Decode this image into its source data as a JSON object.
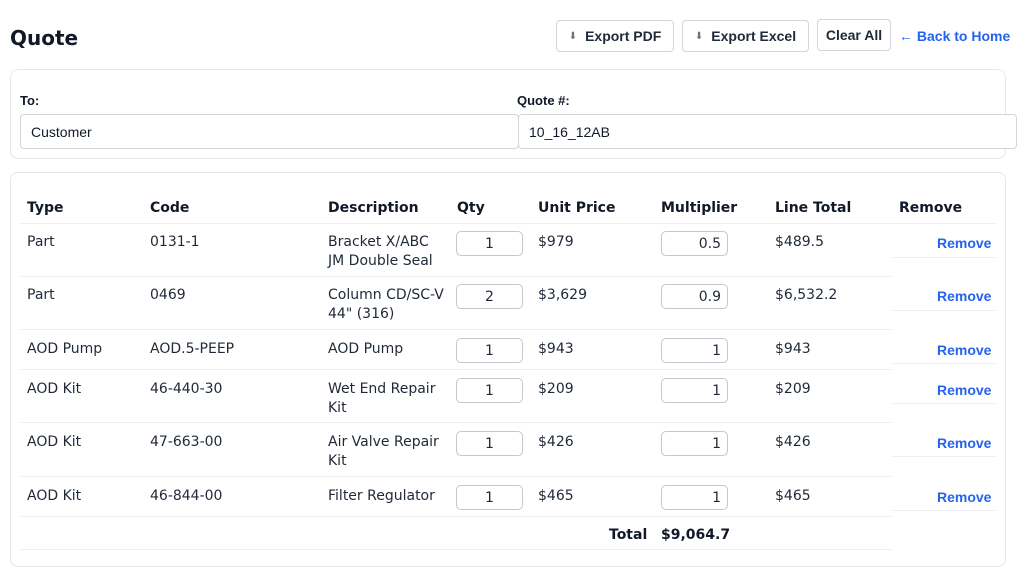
{
  "header": {
    "title": "Quote",
    "export_pdf": "Export PDF",
    "export_excel": "Export Excel",
    "clear_all": "Clear All",
    "back_home": "← Back to Home"
  },
  "quote_info": {
    "to_label": "To:",
    "to_value": "Customer",
    "quote_label": "Quote #:",
    "quote_value": "10_16_12AB"
  },
  "table": {
    "columns": [
      "Type",
      "Code",
      "Description",
      "Qty",
      "Unit Price",
      "Multiplier",
      "Line Total",
      "Remove"
    ],
    "rows": [
      {
        "type": "Part",
        "code": "0131-1",
        "description": "Bracket X/ABC JM Double Seal",
        "qty": "1",
        "unit_price": "$979",
        "multiplier": "0.5",
        "line_total": "$489.5",
        "remove": "Remove"
      },
      {
        "type": "Part",
        "code": "0469",
        "description": "Column CD/SC-V 44\" (316)",
        "qty": "2",
        "unit_price": "$3,629",
        "multiplier": "0.9",
        "line_total": "$6,532.2",
        "remove": "Remove"
      },
      {
        "type": "AOD Pump",
        "code": "AOD.5-PEEP",
        "description": "AOD Pump",
        "qty": "1",
        "unit_price": "$943",
        "multiplier": "1",
        "line_total": "$943",
        "remove": "Remove"
      },
      {
        "type": "AOD Kit",
        "code": "46-440-30",
        "description": "Wet End Repair Kit",
        "qty": "1",
        "unit_price": "$209",
        "multiplier": "1",
        "line_total": "$209",
        "remove": "Remove"
      },
      {
        "type": "AOD Kit",
        "code": "47-663-00",
        "description": "Air Valve Repair Kit",
        "qty": "1",
        "unit_price": "$426",
        "multiplier": "1",
        "line_total": "$426",
        "remove": "Remove"
      },
      {
        "type": "AOD Kit",
        "code": "46-844-00",
        "description": "Filter Regulator",
        "qty": "1",
        "unit_price": "$465",
        "multiplier": "1",
        "line_total": "$465",
        "remove": "Remove"
      }
    ],
    "total_label": "Total",
    "total_value": "$9,064.7"
  },
  "icons": {
    "export_pdf": "pdf-file-icon",
    "export_excel": "excel-file-icon"
  },
  "colors": {
    "link": "#2563eb",
    "border": "#e5e7eb",
    "text": "#1f2937"
  }
}
